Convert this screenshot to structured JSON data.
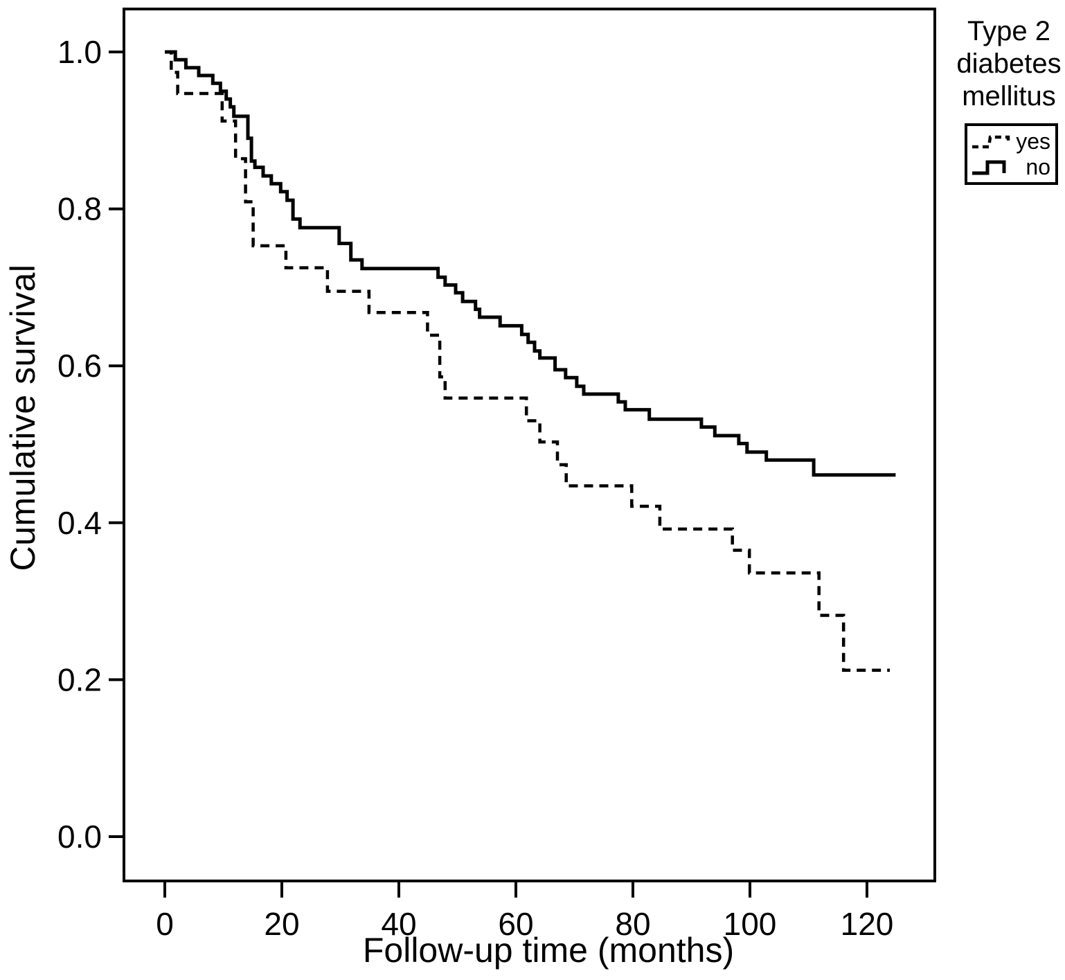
{
  "chart_data": {
    "type": "line",
    "subtype": "kaplan-meier-step",
    "title": "",
    "xlabel": "Follow-up time (months)",
    "ylabel": "Cumulative survival",
    "x_ticks": [
      0,
      20,
      40,
      60,
      80,
      100,
      120
    ],
    "y_ticks": [
      "0.0",
      "0.2",
      "0.4",
      "0.6",
      "0.8",
      "1.0"
    ],
    "xlim": [
      -7,
      131.5
    ],
    "ylim": [
      -0.06,
      1.055
    ],
    "grid": false,
    "legend": {
      "title": "Type 2 diabetes mellitus",
      "title_lines": [
        "Type 2",
        "diabetes",
        "mellitus"
      ],
      "position": "top-right",
      "entries": [
        {
          "label": "yes",
          "style": "dashed"
        },
        {
          "label": "no",
          "style": "solid"
        }
      ]
    },
    "line_color": "#000000",
    "background_color": "#ffffff",
    "series": [
      {
        "name": "yes",
        "style": "dashed",
        "points": [
          [
            0,
            1.0
          ],
          [
            1.1,
            0.974
          ],
          [
            2.2,
            0.947
          ],
          [
            9.8,
            0.912
          ],
          [
            12.1,
            0.864
          ],
          [
            13.8,
            0.809
          ],
          [
            15.1,
            0.753
          ],
          [
            20.7,
            0.725
          ],
          [
            27.8,
            0.695
          ],
          [
            34.9,
            0.668
          ],
          [
            44.9,
            0.639
          ],
          [
            47.0,
            0.586
          ],
          [
            47.9,
            0.559
          ],
          [
            61.8,
            0.53
          ],
          [
            64.1,
            0.503
          ],
          [
            67.1,
            0.474
          ],
          [
            68.6,
            0.447
          ],
          [
            79.8,
            0.421
          ],
          [
            84.6,
            0.392
          ],
          [
            97.0,
            0.365
          ],
          [
            99.9,
            0.336
          ],
          [
            111.8,
            0.282
          ],
          [
            116.0,
            0.212
          ],
          [
            123.9,
            0.212
          ]
        ]
      },
      {
        "name": "no",
        "style": "solid",
        "points": [
          [
            0,
            1.0
          ],
          [
            1.8,
            0.99
          ],
          [
            3.6,
            0.98
          ],
          [
            5.8,
            0.97
          ],
          [
            8.2,
            0.96
          ],
          [
            9.5,
            0.95
          ],
          [
            10.5,
            0.94
          ],
          [
            11.2,
            0.93
          ],
          [
            11.8,
            0.918
          ],
          [
            14.2,
            0.89
          ],
          [
            14.8,
            0.861
          ],
          [
            15.4,
            0.853
          ],
          [
            16.8,
            0.842
          ],
          [
            18.2,
            0.832
          ],
          [
            19.8,
            0.822
          ],
          [
            20.9,
            0.811
          ],
          [
            21.9,
            0.787
          ],
          [
            23.1,
            0.776
          ],
          [
            29.8,
            0.756
          ],
          [
            31.8,
            0.735
          ],
          [
            33.7,
            0.724
          ],
          [
            46.7,
            0.713
          ],
          [
            47.9,
            0.703
          ],
          [
            49.7,
            0.693
          ],
          [
            50.9,
            0.682
          ],
          [
            53.1,
            0.672
          ],
          [
            53.8,
            0.662
          ],
          [
            57.3,
            0.651
          ],
          [
            61.0,
            0.64
          ],
          [
            62.1,
            0.63
          ],
          [
            63.2,
            0.619
          ],
          [
            64.1,
            0.61
          ],
          [
            66.7,
            0.595
          ],
          [
            68.5,
            0.585
          ],
          [
            70.4,
            0.574
          ],
          [
            71.6,
            0.564
          ],
          [
            77.5,
            0.554
          ],
          [
            78.7,
            0.544
          ],
          [
            82.8,
            0.532
          ],
          [
            91.7,
            0.522
          ],
          [
            94.0,
            0.511
          ],
          [
            98.1,
            0.501
          ],
          [
            99.5,
            0.49
          ],
          [
            102.8,
            0.48
          ],
          [
            110.9,
            0.461
          ],
          [
            124.9,
            0.461
          ]
        ]
      }
    ]
  }
}
